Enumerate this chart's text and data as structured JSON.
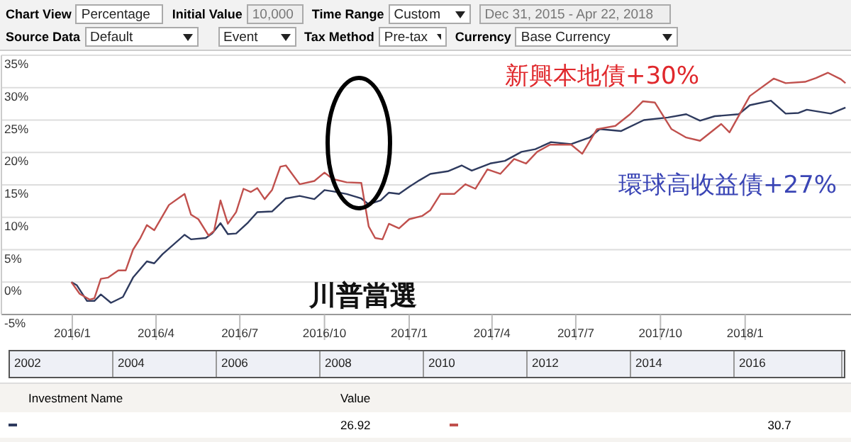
{
  "chart_data": {
    "type": "line",
    "xlim": [
      "2015-10-16",
      "2018-04-26"
    ],
    "xticks": [
      {
        "value": "2016-01-01",
        "label": "2016/1"
      },
      {
        "value": "2016-04-01",
        "label": "2016/4"
      },
      {
        "value": "2016-07-01",
        "label": "2016/7"
      },
      {
        "value": "2016-10-01",
        "label": "2016/10"
      },
      {
        "value": "2017-01-01",
        "label": "2017/1"
      },
      {
        "value": "2017-04-01",
        "label": "2017/4"
      },
      {
        "value": "2017-07-01",
        "label": "2017/7"
      },
      {
        "value": "2017-10-01",
        "label": "2017/10"
      },
      {
        "value": "2018-01-01",
        "label": "2018/1"
      }
    ],
    "ylim": [
      -5,
      35
    ],
    "yticks": [
      {
        "value": -5,
        "label": "-5%"
      },
      {
        "value": 0,
        "label": "0%"
      },
      {
        "value": 5,
        "label": "5%"
      },
      {
        "value": 10,
        "label": "10%"
      },
      {
        "value": 15,
        "label": "15%"
      },
      {
        "value": 20,
        "label": "20%"
      },
      {
        "value": 25,
        "label": "25%"
      },
      {
        "value": 30,
        "label": "30%"
      },
      {
        "value": 35,
        "label": "35%"
      }
    ],
    "grid": "y",
    "marker": "none",
    "line_style": "solid",
    "series": [
      {
        "color": "#2e3a5e",
        "x": [
          "2015-12-31",
          "2016-01-06",
          "2016-01-17",
          "2016-01-25",
          "2016-02-01",
          "2016-02-12",
          "2016-02-25",
          "2016-03-07",
          "2016-03-22",
          "2016-03-30",
          "2016-04-08",
          "2016-05-02",
          "2016-05-09",
          "2016-05-25",
          "2016-06-01",
          "2016-06-10",
          "2016-06-18",
          "2016-06-27",
          "2016-07-10",
          "2016-07-20",
          "2016-08-05",
          "2016-08-20",
          "2016-09-04",
          "2016-09-20",
          "2016-10-01",
          "2016-10-10",
          "2016-10-25",
          "2016-11-10",
          "2016-11-18",
          "2016-12-01",
          "2016-12-10",
          "2016-12-21",
          "2017-01-01",
          "2017-01-12",
          "2017-01-24",
          "2017-02-12",
          "2017-02-27",
          "2017-03-10",
          "2017-03-30",
          "2017-04-15",
          "2017-05-03",
          "2017-05-18",
          "2017-06-04",
          "2017-06-26",
          "2017-07-16",
          "2017-07-27",
          "2017-08-19",
          "2017-09-13",
          "2017-10-09",
          "2017-10-29",
          "2017-11-13",
          "2017-11-29",
          "2017-12-25",
          "2018-01-06",
          "2018-01-29",
          "2018-02-14",
          "2018-02-28",
          "2018-03-09",
          "2018-04-04",
          "2018-04-20"
        ],
        "values": [
          0,
          -0.5,
          -2.9,
          -2.9,
          -1.9,
          -3.2,
          -2.3,
          0.7,
          3.2,
          2.9,
          4.3,
          7.3,
          6.6,
          6.8,
          7.5,
          9.1,
          7.4,
          7.5,
          9.2,
          10.8,
          10.9,
          12.9,
          13.3,
          12.8,
          14.2,
          14.0,
          13.6,
          12.9,
          12.0,
          12.6,
          13.8,
          13.6,
          14.7,
          15.7,
          16.7,
          17.1,
          18.0,
          17.2,
          18.3,
          18.7,
          20.1,
          20.5,
          21.6,
          21.3,
          22.3,
          23.6,
          23.3,
          25.0,
          25.4,
          25.9,
          24.9,
          25.6,
          25.9,
          27.3,
          28.0,
          26.0,
          26.1,
          26.6,
          26.0,
          26.92
        ]
      },
      {
        "color": "#c0504d",
        "x": [
          "2015-12-31",
          "2016-01-09",
          "2016-01-20",
          "2016-01-25",
          "2016-02-01",
          "2016-02-09",
          "2016-02-20",
          "2016-02-28",
          "2016-03-07",
          "2016-03-15",
          "2016-03-22",
          "2016-03-30",
          "2016-04-15",
          "2016-05-02",
          "2016-05-09",
          "2016-05-17",
          "2016-05-28",
          "2016-06-03",
          "2016-06-10",
          "2016-06-18",
          "2016-06-27",
          "2016-07-05",
          "2016-07-13",
          "2016-07-20",
          "2016-07-28",
          "2016-08-05",
          "2016-08-14",
          "2016-08-20",
          "2016-09-04",
          "2016-09-20",
          "2016-10-01",
          "2016-10-10",
          "2016-10-25",
          "2016-11-10",
          "2016-11-18",
          "2016-11-25",
          "2016-12-03",
          "2016-12-10",
          "2016-12-21",
          "2017-01-01",
          "2017-01-15",
          "2017-01-24",
          "2017-02-04",
          "2017-02-19",
          "2017-03-03",
          "2017-03-14",
          "2017-03-27",
          "2017-04-10",
          "2017-04-25",
          "2017-05-08",
          "2017-05-20",
          "2017-06-03",
          "2017-06-26",
          "2017-07-08",
          "2017-07-24",
          "2017-08-13",
          "2017-08-29",
          "2017-09-12",
          "2017-09-25",
          "2017-10-13",
          "2017-10-29",
          "2017-11-13",
          "2017-12-06",
          "2017-12-15",
          "2018-01-06",
          "2018-02-01",
          "2018-02-14",
          "2018-03-07",
          "2018-03-19",
          "2018-04-01",
          "2018-04-15",
          "2018-04-20"
        ],
        "values": [
          0,
          -1.8,
          -2.7,
          -2.5,
          0.5,
          0.7,
          1.8,
          1.8,
          5.0,
          6.8,
          8.8,
          8.0,
          11.9,
          13.6,
          10.4,
          9.7,
          7.2,
          7.9,
          12.6,
          9.0,
          10.8,
          14.4,
          13.9,
          14.5,
          12.8,
          14.2,
          17.8,
          18.0,
          15.1,
          15.6,
          16.9,
          15.9,
          15.4,
          15.3,
          8.6,
          6.8,
          6.6,
          9.0,
          8.3,
          9.7,
          10.2,
          11.1,
          13.6,
          13.6,
          15.1,
          14.4,
          17.4,
          16.7,
          19.0,
          18.3,
          20.1,
          21.2,
          21.2,
          19.8,
          23.6,
          24.1,
          25.9,
          27.9,
          27.7,
          23.6,
          22.3,
          21.8,
          24.4,
          23.1,
          28.7,
          31.4,
          30.7,
          30.9,
          31.5,
          32.3,
          31.3,
          30.7
        ]
      }
    ],
    "annotations": [
      "環球高收益債+27%",
      "新興本地債+30%",
      "川普當選",
      "Chart View",
      "Percentage",
      "Initial Value",
      "10,000",
      "Time Range",
      "Custom",
      "Dec 31, 2015 - Apr 22, 2018",
      "Source Data",
      "Default",
      "Event",
      "Tax Method",
      "Pre-tax",
      "Currency",
      "Base Currency",
      "2002",
      "2004",
      "2006",
      "2008",
      "2010",
      "2012",
      "2014",
      "2016",
      "Investment Name",
      "Value",
      "26.92",
      "30.7"
    ]
  }
}
